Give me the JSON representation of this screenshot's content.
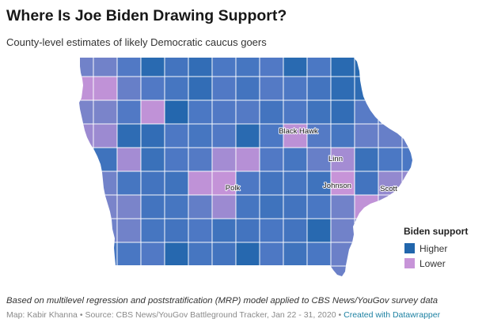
{
  "header": {
    "title": "Where Is Joe Biden Drawing Support?",
    "subtitle": "County-level estimates of likely Democratic caucus goers"
  },
  "map": {
    "color_scale": [
      "#c794d8",
      "#a48cd3",
      "#7a84ca",
      "#4b78c4",
      "#2166ac"
    ],
    "labels": {
      "black_hawk": "Black Hawk",
      "linn": "Linn",
      "johnson": "Johnson",
      "polk": "Polk",
      "scott": "Scott"
    },
    "support_grid": [
      [
        0.55,
        0.55,
        0.72,
        0.95,
        0.8,
        0.9,
        0.75,
        0.78,
        0.72,
        0.95,
        0.75,
        0.95,
        0.95,
        null,
        null
      ],
      [
        0.05,
        0.05,
        0.6,
        0.72,
        0.78,
        0.9,
        0.72,
        0.8,
        0.7,
        0.74,
        0.8,
        0.92,
        0.92,
        null,
        null
      ],
      [
        0.5,
        0.5,
        0.72,
        0.05,
        0.98,
        0.75,
        0.72,
        0.7,
        0.8,
        0.74,
        0.82,
        0.9,
        0.68,
        0.68,
        null
      ],
      [
        0.3,
        0.3,
        0.92,
        0.9,
        0.74,
        0.78,
        0.72,
        0.95,
        0.75,
        0.08,
        0.7,
        0.78,
        0.6,
        0.6,
        0.6
      ],
      [
        0.82,
        0.82,
        0.25,
        0.85,
        0.74,
        0.7,
        0.25,
        0.12,
        0.72,
        0.78,
        0.6,
        0.25,
        0.85,
        0.75,
        0.75
      ],
      [
        0.55,
        0.55,
        0.78,
        0.8,
        0.82,
        0.06,
        0.02,
        0.74,
        0.8,
        0.78,
        0.82,
        0.0,
        0.8,
        0.35,
        0.35
      ],
      [
        0.5,
        0.5,
        0.5,
        0.8,
        0.78,
        0.62,
        0.3,
        0.78,
        0.82,
        0.8,
        0.76,
        0.55,
        0.05,
        0.35,
        null
      ],
      [
        0.55,
        0.55,
        0.55,
        0.78,
        0.8,
        0.74,
        0.82,
        0.8,
        0.76,
        0.8,
        0.96,
        0.55,
        0.5,
        null,
        null
      ],
      [
        0.78,
        0.78,
        0.76,
        0.72,
        0.97,
        0.78,
        0.8,
        0.97,
        0.74,
        0.82,
        0.76,
        0.58,
        0.58,
        null,
        null
      ],
      [
        null,
        null,
        null,
        null,
        null,
        null,
        null,
        null,
        null,
        null,
        null,
        0.58,
        null,
        null,
        null
      ]
    ]
  },
  "legend": {
    "title": "Biden support",
    "items": [
      {
        "label": "Higher",
        "color": "#2166ac"
      },
      {
        "label": "Lower",
        "color": "#c794d8"
      }
    ]
  },
  "footer": {
    "note": "Based on multilevel regression and poststratification (MRP) model applied to CBS News/YouGov survey data",
    "byline": "Map: Kabir Khanna",
    "separator": "•",
    "source": "Source: CBS News/YouGov Battleground Tracker, Jan 22 - 31, 2020",
    "credit": "Created with Datawrapper",
    "credit_color": "#1d81a2"
  }
}
